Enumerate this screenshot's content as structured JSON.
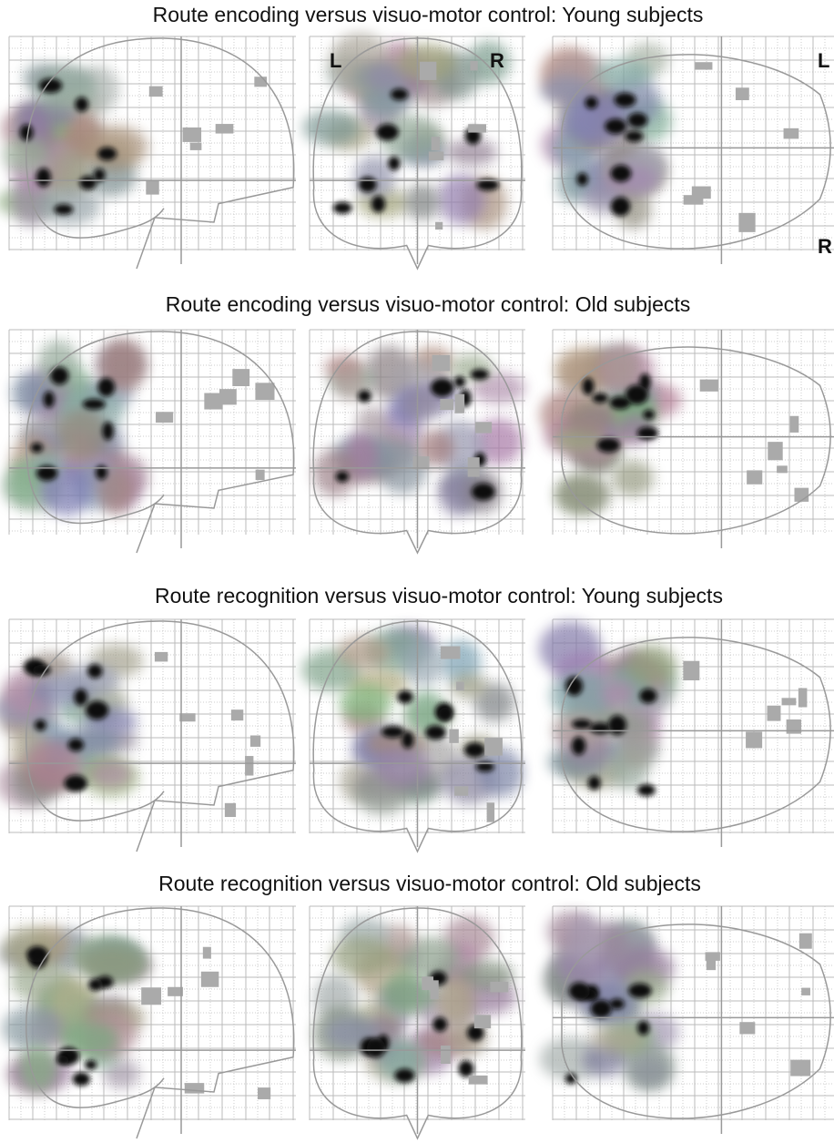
{
  "rows": [
    {
      "title": "Route encoding versus visuo-motor control: Young subjects",
      "coronal_labels": [
        "L",
        "R"
      ],
      "axial_labels": [
        "L",
        "R"
      ]
    },
    {
      "title": "Route encoding versus visuo-motor control: Old subjects"
    },
    {
      "title": "Route recognition versus visuo-motor control: Young subjects"
    },
    {
      "title": "Route recognition versus visuo-motor control: Old subjects"
    }
  ]
}
